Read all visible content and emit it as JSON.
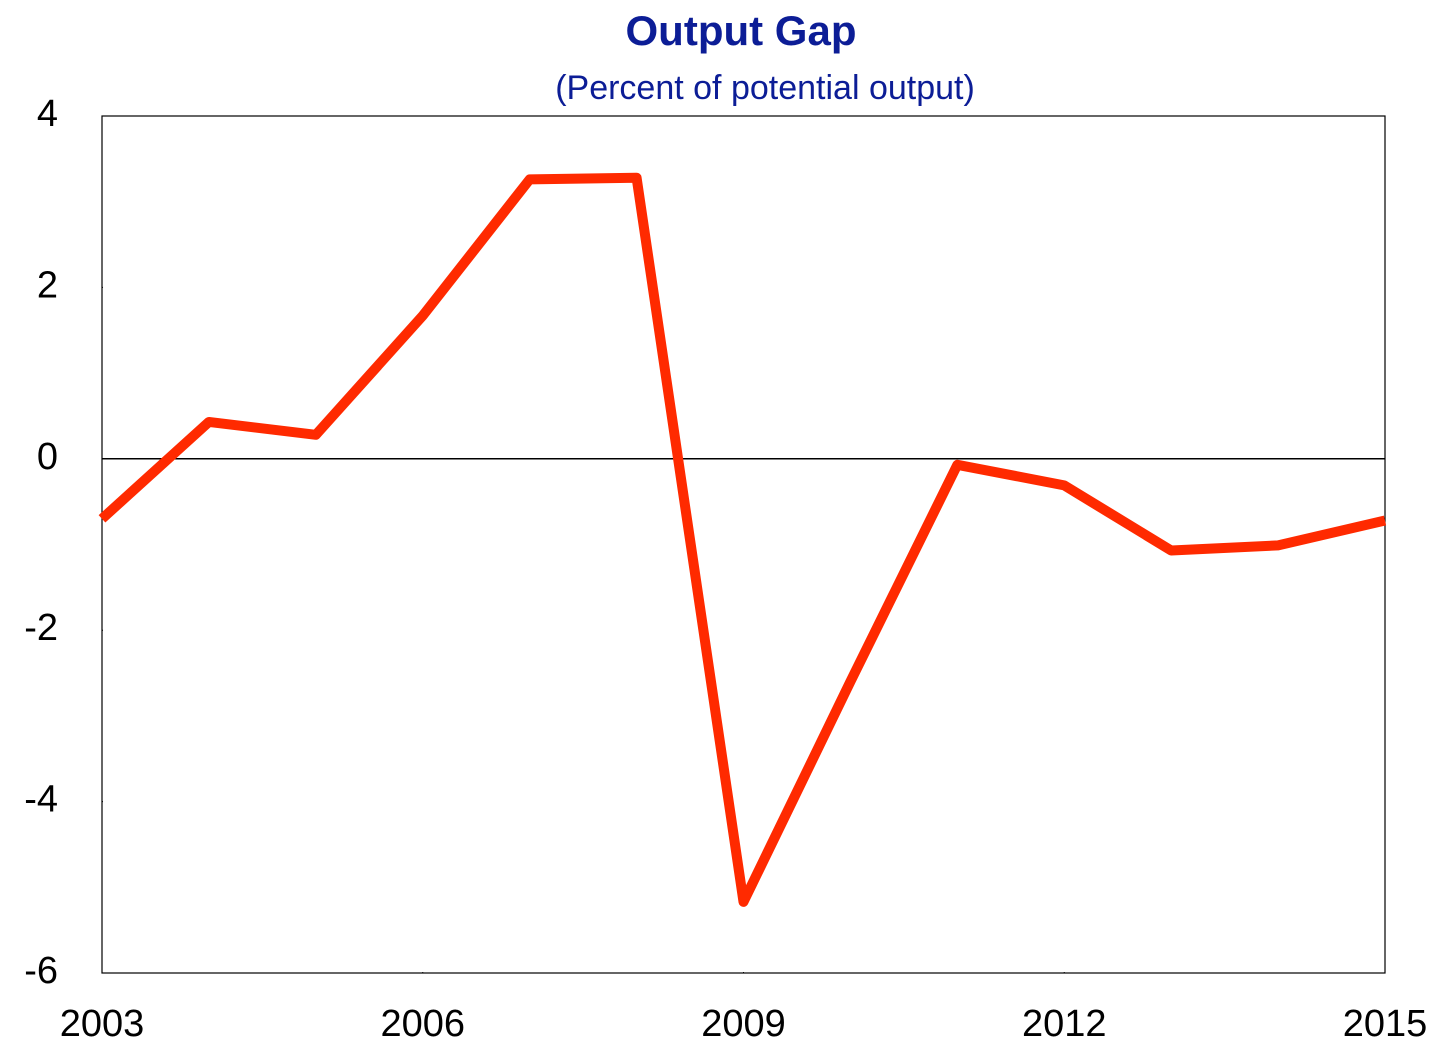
{
  "chart_data": {
    "type": "line",
    "title": "Output Gap",
    "subtitle": "(Percent of potential output)",
    "x": [
      2003,
      2004,
      2005,
      2006,
      2007,
      2008,
      2009,
      2010,
      2011,
      2012,
      2013,
      2014,
      2015
    ],
    "series": [
      {
        "name": "Output gap",
        "color": "#ff2a00",
        "values": [
          -0.7,
          0.43,
          0.28,
          1.67,
          3.26,
          3.28,
          -5.17,
          -2.6,
          -0.07,
          -0.31,
          -1.07,
          -1.01,
          -0.72
        ]
      }
    ],
    "xlim": [
      2003,
      2015
    ],
    "xticks": [
      2003,
      2006,
      2009,
      2012,
      2015
    ],
    "ylim": [
      -6,
      4
    ],
    "yticks": [
      -6,
      -4,
      -2,
      0,
      2,
      4
    ],
    "zero_line": true,
    "legend": false
  }
}
